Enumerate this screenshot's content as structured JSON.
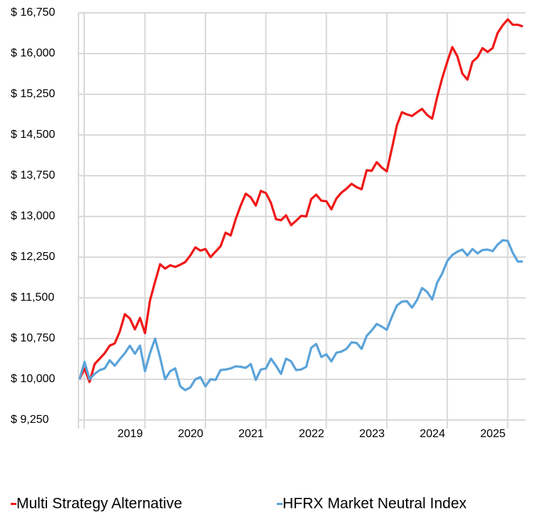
{
  "chart_data": {
    "type": "line",
    "x": [
      2017.917,
      2018,
      2018.083,
      2018.167,
      2018.25,
      2018.333,
      2018.417,
      2018.5,
      2018.583,
      2018.667,
      2018.75,
      2018.833,
      2018.917,
      2019,
      2019.083,
      2019.167,
      2019.25,
      2019.333,
      2019.417,
      2019.5,
      2019.583,
      2019.667,
      2019.75,
      2019.833,
      2019.917,
      2020,
      2020.083,
      2020.167,
      2020.25,
      2020.333,
      2020.417,
      2020.5,
      2020.583,
      2020.667,
      2020.75,
      2020.833,
      2020.917,
      2021,
      2021.083,
      2021.167,
      2021.25,
      2021.333,
      2021.417,
      2021.5,
      2021.583,
      2021.667,
      2021.75,
      2021.833,
      2021.917,
      2022,
      2022.083,
      2022.167,
      2022.25,
      2022.333,
      2022.417,
      2022.5,
      2022.583,
      2022.667,
      2022.75,
      2022.833,
      2022.917,
      2023,
      2023.083,
      2023.167,
      2023.25,
      2023.333,
      2023.417,
      2023.5,
      2023.583,
      2023.667,
      2023.75,
      2023.833,
      2023.917,
      2024,
      2024.083,
      2024.167,
      2024.25,
      2024.333,
      2024.417,
      2024.5,
      2024.583,
      2024.667,
      2024.75,
      2024.833,
      2024.917,
      2025,
      2025.083,
      2025.167,
      2025.25
    ],
    "series": [
      {
        "name": "Multi Strategy Alternative",
        "color": "#f01818",
        "values": [
          10000,
          10200,
          9950,
          10280,
          10380,
          10480,
          10620,
          10660,
          10880,
          11200,
          11120,
          10920,
          11130,
          10850,
          11450,
          11800,
          12120,
          12040,
          12100,
          12070,
          12110,
          12160,
          12280,
          12430,
          12370,
          12400,
          12250,
          12350,
          12450,
          12700,
          12650,
          12950,
          13200,
          13420,
          13350,
          13200,
          13470,
          13430,
          13250,
          12950,
          12930,
          13020,
          12840,
          12920,
          13010,
          13000,
          13320,
          13400,
          13290,
          13280,
          13130,
          13330,
          13440,
          13510,
          13600,
          13540,
          13500,
          13850,
          13840,
          14000,
          13900,
          13830,
          14250,
          14680,
          14920,
          14880,
          14850,
          14920,
          14980,
          14870,
          14800,
          15200,
          15550,
          15850,
          16120,
          15950,
          15630,
          15520,
          15850,
          15930,
          16100,
          16030,
          16100,
          16380,
          16520,
          16630,
          16530,
          16530,
          16500
        ]
      },
      {
        "name": "HFRX Market Neutral Index",
        "color": "#5ba3d9",
        "values": [
          10000,
          10320,
          10000,
          10100,
          10170,
          10200,
          10350,
          10250,
          10370,
          10480,
          10620,
          10470,
          10620,
          10150,
          10480,
          10750,
          10400,
          10000,
          10150,
          10200,
          9870,
          9800,
          9850,
          10000,
          10040,
          9870,
          10000,
          9990,
          10170,
          10180,
          10200,
          10240,
          10230,
          10210,
          10280,
          9990,
          10180,
          10200,
          10380,
          10250,
          10100,
          10380,
          10330,
          10170,
          10180,
          10230,
          10580,
          10650,
          10410,
          10460,
          10330,
          10490,
          10510,
          10560,
          10680,
          10670,
          10560,
          10800,
          10900,
          11020,
          10970,
          10910,
          11150,
          11360,
          11430,
          11440,
          11320,
          11460,
          11680,
          11610,
          11470,
          11780,
          11950,
          12180,
          12290,
          12350,
          12390,
          12280,
          12400,
          12320,
          12380,
          12390,
          12360,
          12480,
          12560,
          12550,
          12330,
          12170,
          12170
        ]
      }
    ],
    "xlim": [
      2017.9,
      2025.3
    ],
    "xticks": [
      2019,
      2020,
      2021,
      2022,
      2023,
      2024,
      2025
    ],
    "ylim": [
      9250,
      16750
    ],
    "yticks": [
      {
        "value": 9250,
        "label": "$ 9,250"
      },
      {
        "value": 10000,
        "label": "$ 10,000"
      },
      {
        "value": 10750,
        "label": "$ 10,750"
      },
      {
        "value": 11500,
        "label": "$ 11,500"
      },
      {
        "value": 12250,
        "label": "$ 12,250"
      },
      {
        "value": 13000,
        "label": "$ 13,000"
      },
      {
        "value": 13750,
        "label": "$ 13,750"
      },
      {
        "value": 14500,
        "label": "$ 14,500"
      },
      {
        "value": 15250,
        "label": "$ 15,250"
      },
      {
        "value": 16000,
        "label": "$ 16,000"
      },
      {
        "value": 16750,
        "label": "$ 16,750"
      }
    ],
    "grid": true
  }
}
